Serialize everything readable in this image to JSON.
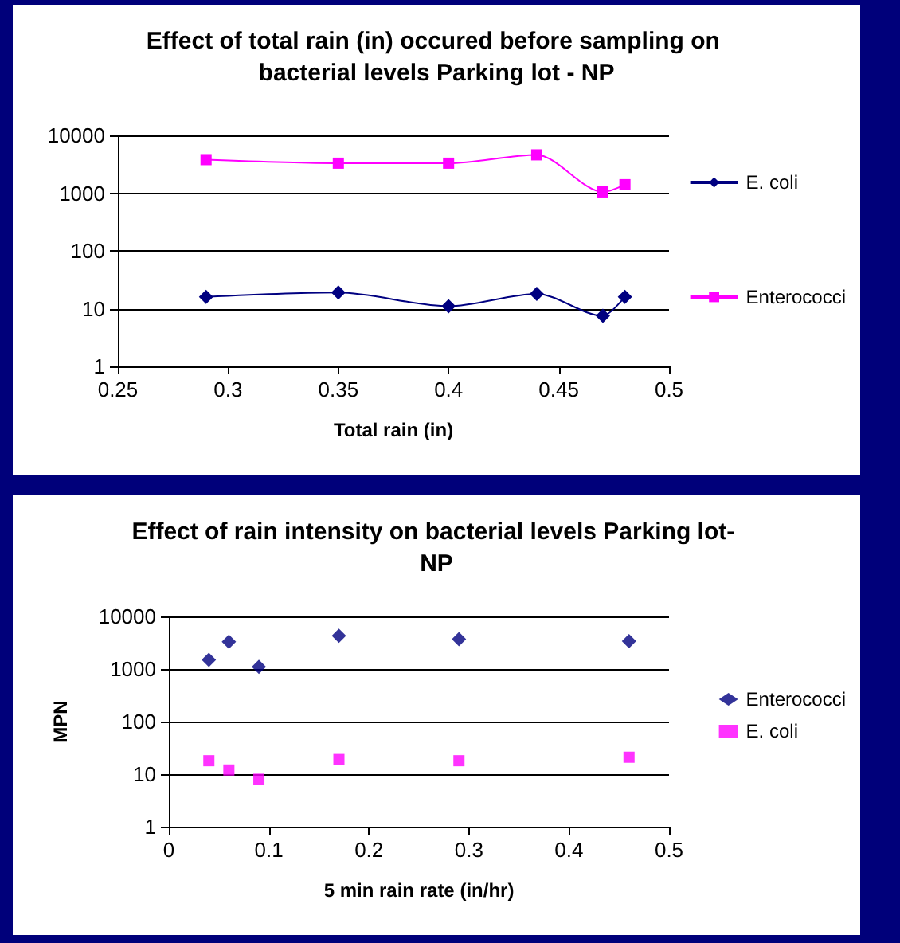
{
  "chart_data": [
    {
      "type": "line",
      "title": "Effect of total rain (in) occured before sampling on bacterial levels Parking lot - NP",
      "xlabel": "Total rain (in)",
      "x": [
        0.29,
        0.35,
        0.4,
        0.44,
        0.47,
        0.48
      ],
      "series": [
        {
          "name": "E. coli",
          "color": "#000080",
          "marker": "diamond",
          "values": [
            16,
            19,
            11,
            18,
            7.5,
            16
          ]
        },
        {
          "name": "Enterococci",
          "color": "#ff00ff",
          "marker": "square",
          "values": [
            3800,
            3300,
            3300,
            4600,
            1050,
            1400
          ]
        }
      ],
      "xlim": [
        0.25,
        0.5
      ],
      "xticks": [
        0.25,
        0.3,
        0.35,
        0.4,
        0.45,
        0.5
      ],
      "ylim": [
        1,
        10000
      ],
      "yticks": [
        1,
        10,
        100,
        1000,
        10000
      ],
      "log": "y",
      "grid": "y",
      "legend": "right"
    },
    {
      "type": "scatter",
      "title": "Effect of rain intensity on bacterial levels Parking lot- NP",
      "xlabel": "5 min rain rate (in/hr)",
      "ylabel": "MPN",
      "x": [
        0.04,
        0.06,
        0.09,
        0.17,
        0.29,
        0.46
      ],
      "series": [
        {
          "name": "Enterococci",
          "color": "#000080",
          "marker": "diamond",
          "values": [
            1500,
            3300,
            1100,
            4300,
            3700,
            3400
          ]
        },
        {
          "name": "E. coli",
          "color": "#ff00ff",
          "marker": "square",
          "values": [
            18,
            12,
            8,
            19,
            18,
            21
          ]
        }
      ],
      "xlim": [
        0,
        0.5
      ],
      "xticks": [
        0,
        0.1,
        0.2,
        0.3,
        0.4,
        0.5
      ],
      "ylim": [
        1,
        10000
      ],
      "yticks": [
        1,
        10,
        100,
        1000,
        10000
      ],
      "log": "y",
      "grid": "y",
      "legend": "right"
    }
  ]
}
